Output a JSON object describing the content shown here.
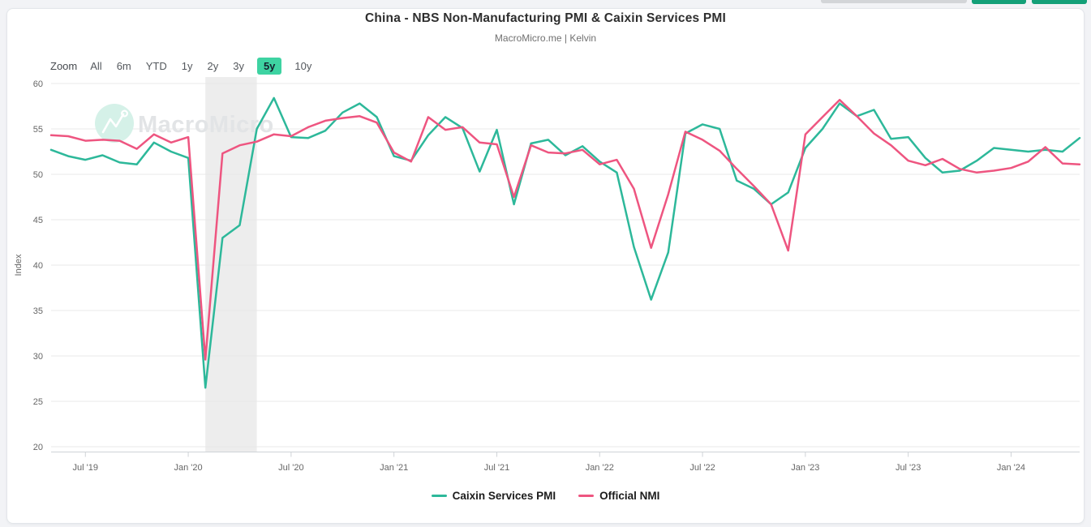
{
  "header": {
    "title": "China - NBS Non-Manufacturing PMI & Caixin Services PMI",
    "subtitle": "MacroMicro.me | Kelvin"
  },
  "toolbar": {
    "zoom_label": "Zoom",
    "active_color": "#3ed3a2",
    "items": [
      {
        "label": "All",
        "active": false
      },
      {
        "label": "6m",
        "active": false
      },
      {
        "label": "YTD",
        "active": false
      },
      {
        "label": "1y",
        "active": false
      },
      {
        "label": "2y",
        "active": false
      },
      {
        "label": "3y",
        "active": false
      },
      {
        "label": "5y",
        "active": true
      },
      {
        "label": "10y",
        "active": false
      }
    ]
  },
  "watermark": {
    "text": "MacroMicro",
    "circle_color": "#d5f1e8"
  },
  "chart_data": {
    "type": "line",
    "title": "China - NBS Non-Manufacturing PMI & Caixin Services PMI",
    "xlabel": "",
    "ylabel": "Index",
    "ylim": [
      20,
      60
    ],
    "ytick_step": 5,
    "grid": true,
    "legend_position": "bottom",
    "x_unit": "month",
    "x_start": "2019-05",
    "x_end": "2024-05",
    "xtick_indices": [
      2,
      8,
      14,
      20,
      26,
      32,
      38,
      44,
      50,
      56
    ],
    "xtick_labels": [
      "Jul '19",
      "Jan '20",
      "Jul '20",
      "Jan '21",
      "Jul '21",
      "Jan '22",
      "Jul '22",
      "Jan '23",
      "Jul '23",
      "Jan '24"
    ],
    "shaded_region": {
      "from": "2020-02",
      "to": "2020-05",
      "color": "#ededed"
    },
    "series": [
      {
        "name": "Caixin Services PMI",
        "color": "#2db89a",
        "values": [
          52.7,
          52.0,
          51.6,
          52.1,
          51.3,
          51.1,
          53.5,
          52.5,
          51.8,
          26.5,
          43.0,
          44.4,
          55.0,
          58.4,
          54.1,
          54.0,
          54.8,
          56.8,
          57.8,
          56.3,
          52.0,
          51.5,
          54.3,
          56.3,
          55.1,
          50.3,
          54.9,
          46.7,
          53.4,
          53.8,
          52.1,
          53.1,
          51.4,
          50.2,
          42.0,
          36.2,
          41.4,
          54.5,
          55.5,
          55.0,
          49.3,
          48.4,
          46.7,
          48.0,
          52.9,
          55.0,
          57.8,
          56.4,
          57.1,
          53.9,
          54.1,
          51.8,
          50.2,
          50.4,
          51.5,
          52.9,
          52.7,
          52.5,
          52.7,
          52.5,
          54.0
        ]
      },
      {
        "name": "Official NMI",
        "color": "#ee5580",
        "values": [
          54.3,
          54.2,
          53.7,
          53.8,
          53.7,
          52.8,
          54.4,
          53.5,
          54.1,
          29.6,
          52.3,
          53.2,
          53.6,
          54.4,
          54.2,
          55.2,
          55.9,
          56.2,
          56.4,
          55.7,
          52.4,
          51.4,
          56.3,
          54.9,
          55.2,
          53.5,
          53.3,
          47.5,
          53.2,
          52.4,
          52.3,
          52.7,
          51.1,
          51.6,
          48.4,
          41.9,
          47.8,
          54.7,
          53.8,
          52.6,
          50.6,
          48.7,
          46.7,
          41.6,
          54.4,
          56.3,
          58.2,
          56.4,
          54.5,
          53.2,
          51.5,
          51.0,
          51.7,
          50.6,
          50.2,
          50.4,
          50.7,
          51.4,
          53.0,
          51.2,
          51.1
        ]
      }
    ]
  }
}
